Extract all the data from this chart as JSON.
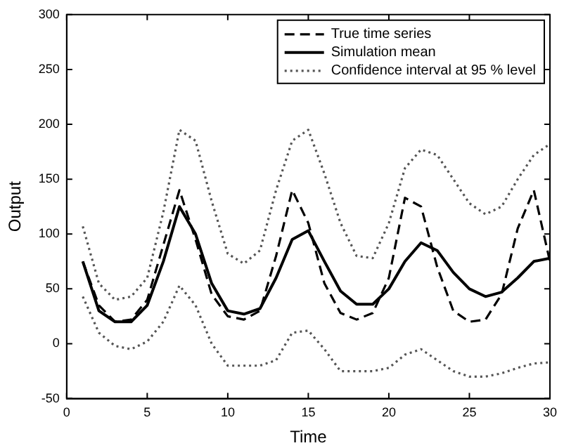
{
  "chart_data": {
    "type": "line",
    "xlabel": "Time",
    "ylabel": "Output",
    "x": [
      1,
      2,
      3,
      4,
      5,
      6,
      7,
      8,
      9,
      10,
      11,
      12,
      13,
      14,
      15,
      16,
      17,
      18,
      19,
      20,
      21,
      22,
      23,
      24,
      25,
      26,
      27,
      28,
      29,
      30
    ],
    "series": [
      {
        "name": "True time series",
        "color": "#000000",
        "line_style": "dashed",
        "values": [
          75,
          35,
          20,
          22,
          40,
          90,
          140,
          95,
          45,
          25,
          22,
          30,
          80,
          140,
          110,
          55,
          28,
          22,
          28,
          60,
          133,
          125,
          70,
          30,
          20,
          22,
          45,
          105,
          140,
          75
        ]
      },
      {
        "name": "Simulation mean",
        "color": "#000000",
        "line_style": "solid",
        "values": [
          75,
          30,
          20,
          20,
          35,
          75,
          125,
          100,
          55,
          30,
          27,
          32,
          60,
          95,
          103,
          75,
          48,
          36,
          36,
          50,
          75,
          92,
          85,
          65,
          50,
          43,
          47,
          60,
          75,
          78
        ]
      },
      {
        "name": "Confidence interval at 95 % level",
        "color": "#555555",
        "line_style": "dotted",
        "values": [
          107,
          55,
          40,
          43,
          60,
          120,
          195,
          185,
          130,
          82,
          73,
          85,
          140,
          185,
          195,
          155,
          110,
          80,
          78,
          110,
          160,
          177,
          172,
          150,
          128,
          118,
          125,
          150,
          172,
          182
        ]
      },
      {
        "color": "#555555",
        "line_style": "dotted",
        "values": [
          43,
          10,
          -2,
          -5,
          2,
          20,
          53,
          35,
          0,
          -20,
          -20,
          -20,
          -15,
          10,
          12,
          -5,
          -25,
          -25,
          -25,
          -22,
          -10,
          -5,
          -15,
          -25,
          -30,
          -30,
          -27,
          -22,
          -18,
          -17
        ]
      }
    ],
    "xlim": [
      0,
      30
    ],
    "xticks": [
      0,
      5,
      10,
      15,
      20,
      25,
      30
    ],
    "ylim": [
      -50,
      300
    ],
    "yticks": [
      -50,
      0,
      50,
      100,
      150,
      200,
      250,
      300
    ],
    "legend": "top right",
    "grid": false,
    "marker": "none"
  }
}
